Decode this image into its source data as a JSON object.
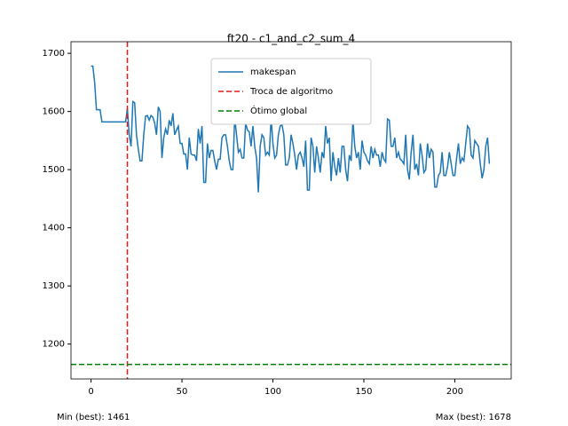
{
  "chart_data": {
    "type": "line",
    "title": "ft20 - c1_and_c2_sum_4",
    "x": [
      0,
      1,
      2,
      3,
      4,
      5,
      6,
      7,
      8,
      9,
      10,
      11,
      12,
      13,
      14,
      15,
      16,
      17,
      18,
      19,
      20,
      21,
      22,
      23,
      24,
      25,
      26,
      27,
      28,
      29,
      30,
      31,
      32,
      33,
      34,
      35,
      36,
      37,
      38,
      39,
      40,
      41,
      42,
      43,
      44,
      45,
      46,
      47,
      48,
      49,
      50,
      51,
      52,
      53,
      54,
      55,
      56,
      57,
      58,
      59,
      60,
      61,
      62,
      63,
      64,
      65,
      66,
      67,
      68,
      69,
      70,
      71,
      72,
      73,
      74,
      75,
      76,
      77,
      78,
      79,
      80,
      81,
      82,
      83,
      84,
      85,
      86,
      87,
      88,
      89,
      90,
      91,
      92,
      93,
      94,
      95,
      96,
      97,
      98,
      99,
      100,
      101,
      102,
      103,
      104,
      105,
      106,
      107,
      108,
      109,
      110,
      111,
      112,
      113,
      114,
      115,
      116,
      117,
      118,
      119,
      120,
      121,
      122,
      123,
      124,
      125,
      126,
      127,
      128,
      129,
      130,
      131,
      132,
      133,
      134,
      135,
      136,
      137,
      138,
      139,
      140,
      141,
      142,
      143,
      144,
      145,
      146,
      147,
      148,
      149,
      150,
      151,
      152,
      153,
      154,
      155,
      156,
      157,
      158,
      159,
      160,
      161,
      162,
      163,
      164,
      165,
      166,
      167,
      168,
      169,
      170,
      171,
      172,
      173,
      174,
      175,
      176,
      177,
      178,
      179,
      180,
      181,
      182,
      183,
      184,
      185,
      186,
      187,
      188,
      189,
      190,
      191,
      192,
      193,
      194,
      195,
      196,
      197,
      198,
      199,
      200,
      201,
      202,
      203,
      204,
      205,
      206,
      207,
      208,
      209,
      210,
      211,
      212,
      213,
      214,
      215,
      216,
      217,
      218,
      219
    ],
    "series": [
      {
        "name": "makespan",
        "color": "#1f77b4",
        "values": [
          1678,
          1678,
          1650,
          1603,
          1603,
          1603,
          1582,
          1582,
          1582,
          1582,
          1582,
          1582,
          1582,
          1582,
          1582,
          1582,
          1582,
          1582,
          1582,
          1582,
          1605,
          1560,
          1540,
          1617,
          1615,
          1560,
          1535,
          1515,
          1515,
          1560,
          1592,
          1593,
          1585,
          1593,
          1590,
          1580,
          1560,
          1608,
          1600,
          1520,
          1555,
          1570,
          1560,
          1585,
          1575,
          1597,
          1560,
          1568,
          1575,
          1545,
          1545,
          1527,
          1527,
          1500,
          1555,
          1527,
          1525,
          1525,
          1515,
          1570,
          1545,
          1575,
          1478,
          1478,
          1545,
          1520,
          1533,
          1533,
          1515,
          1500,
          1518,
          1518,
          1555,
          1560,
          1560,
          1540,
          1515,
          1500,
          1500,
          1590,
          1560,
          1530,
          1535,
          1520,
          1520,
          1580,
          1568,
          1565,
          1540,
          1575,
          1540,
          1520,
          1461,
          1540,
          1560,
          1555,
          1525,
          1530,
          1525,
          1590,
          1545,
          1520,
          1525,
          1560,
          1575,
          1577,
          1560,
          1508,
          1508,
          1520,
          1560,
          1545,
          1525,
          1500,
          1525,
          1530,
          1520,
          1505,
          1550,
          1465,
          1465,
          1555,
          1540,
          1495,
          1540,
          1520,
          1495,
          1530,
          1520,
          1575,
          1545,
          1555,
          1480,
          1530,
          1505,
          1490,
          1520,
          1495,
          1540,
          1540,
          1500,
          1480,
          1525,
          1515,
          1585,
          1540,
          1520,
          1530,
          1500,
          1550,
          1530,
          1525,
          1515,
          1510,
          1540,
          1520,
          1535,
          1525,
          1525,
          1505,
          1530,
          1518,
          1513,
          1587,
          1585,
          1540,
          1540,
          1555,
          1520,
          1530,
          1518,
          1515,
          1510,
          1560,
          1500,
          1483,
          1530,
          1560,
          1500,
          1510,
          1490,
          1545,
          1525,
          1495,
          1500,
          1545,
          1520,
          1535,
          1530,
          1470,
          1470,
          1490,
          1495,
          1530,
          1490,
          1490,
          1505,
          1530,
          1510,
          1490,
          1490,
          1520,
          1545,
          1510,
          1520,
          1515,
          1545,
          1575,
          1570,
          1525,
          1520,
          1550,
          1545,
          1540,
          1510,
          1485,
          1500,
          1540,
          1555,
          1510
        ]
      }
    ],
    "vlines": [
      {
        "name": "Troca de algoritmo",
        "x": 20,
        "color": "#e41a1c"
      }
    ],
    "hlines": [
      {
        "name": "Ótimo global",
        "y": 1165,
        "color": "#008000"
      }
    ],
    "xlim": [
      -11,
      231
    ],
    "ylim": [
      1140,
      1720
    ],
    "xticks": [
      0,
      50,
      100,
      150,
      200
    ],
    "yticks": [
      1200,
      1300,
      1400,
      1500,
      1600,
      1700
    ],
    "legend": "upper center",
    "annotations": [
      "Min (best): 1461",
      "Max (best): 1678"
    ]
  }
}
